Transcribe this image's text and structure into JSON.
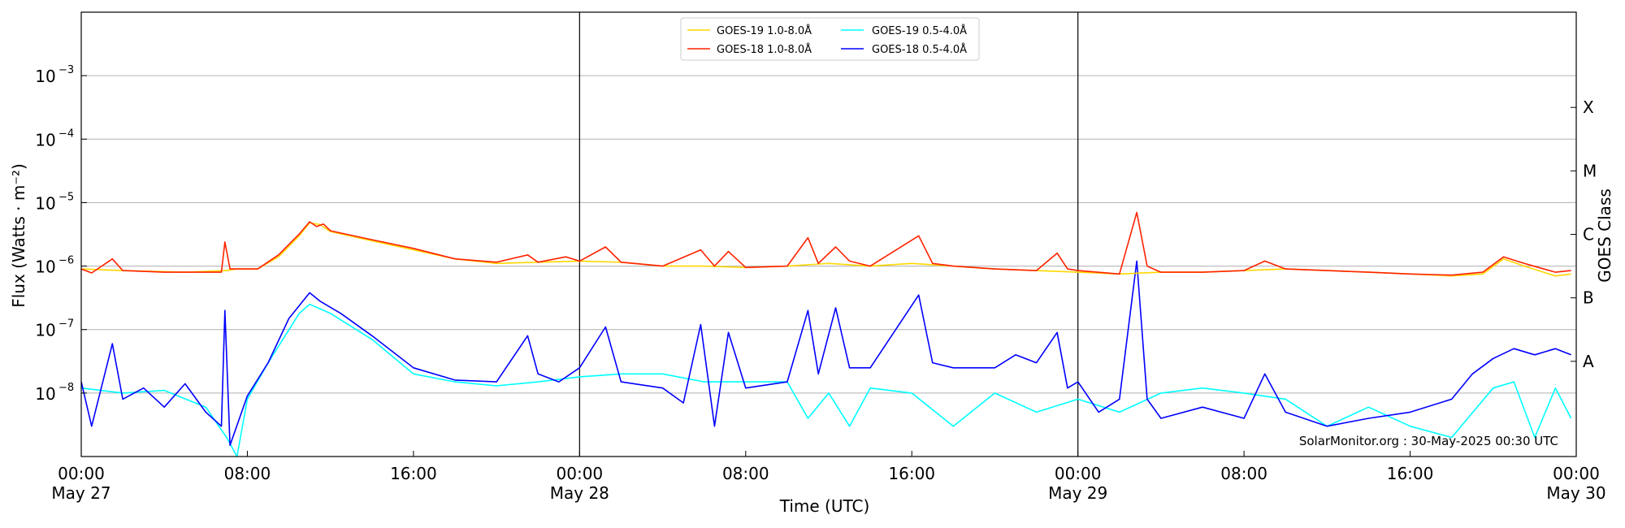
{
  "chart_data": {
    "type": "line",
    "title": "",
    "xlabel": "Time (UTC)",
    "ylabel": "Flux (Watts · m⁻²)",
    "ylabel_right": "GOES Class",
    "y_scale": "log",
    "ylim": [
      1e-09,
      0.01
    ],
    "xlim": [
      "2025-05-27 00:00",
      "2025-05-30 00:00"
    ],
    "grid": "horizontal",
    "legend_placement": "top-center",
    "credit": "SolarMonitor.org : 30-May-2025 00:30 UTC",
    "day_markers": [
      "2025-05-28 00:00",
      "2025-05-29 00:00"
    ],
    "x_ticks": [
      {
        "t": "2025-05-27 00:00",
        "line1": "00:00",
        "line2": "May 27"
      },
      {
        "t": "2025-05-27 08:00",
        "line1": "08:00",
        "line2": ""
      },
      {
        "t": "2025-05-27 16:00",
        "line1": "16:00",
        "line2": ""
      },
      {
        "t": "2025-05-28 00:00",
        "line1": "00:00",
        "line2": "May 28"
      },
      {
        "t": "2025-05-28 08:00",
        "line1": "08:00",
        "line2": ""
      },
      {
        "t": "2025-05-28 16:00",
        "line1": "16:00",
        "line2": ""
      },
      {
        "t": "2025-05-29 00:00",
        "line1": "00:00",
        "line2": "May 29"
      },
      {
        "t": "2025-05-29 08:00",
        "line1": "08:00",
        "line2": ""
      },
      {
        "t": "2025-05-29 16:00",
        "line1": "16:00",
        "line2": ""
      },
      {
        "t": "2025-05-30 00:00",
        "line1": "00:00",
        "line2": "May 30"
      }
    ],
    "y_ticks": [
      {
        "value": 1e-08,
        "label": "10",
        "exp": "−8"
      },
      {
        "value": 1e-07,
        "label": "10",
        "exp": "−7"
      },
      {
        "value": 1e-06,
        "label": "10",
        "exp": "−6"
      },
      {
        "value": 1e-05,
        "label": "10",
        "exp": "−5"
      },
      {
        "value": 0.0001,
        "label": "10",
        "exp": "−4"
      },
      {
        "value": 0.001,
        "label": "10",
        "exp": "−3"
      }
    ],
    "goes_classes": [
      {
        "label": "A",
        "value": 3.16e-08
      },
      {
        "label": "B",
        "value": 3.16e-07
      },
      {
        "label": "C",
        "value": 3.16e-06
      },
      {
        "label": "M",
        "value": 3.16e-05
      },
      {
        "label": "X",
        "value": 0.000316
      }
    ],
    "series": [
      {
        "name": "GOES-19 1.0-8.0Å",
        "color": "#ffd700",
        "points": [
          [
            "2025-05-27 00:00",
            9e-07
          ],
          [
            "2025-05-27 02:00",
            8.5e-07
          ],
          [
            "2025-05-27 05:00",
            8e-07
          ],
          [
            "2025-05-27 07:00",
            8.5e-07
          ],
          [
            "2025-05-27 07:30",
            9e-07
          ],
          [
            "2025-05-27 08:30",
            9e-07
          ],
          [
            "2025-05-27 09:30",
            1.4e-06
          ],
          [
            "2025-05-27 10:30",
            3e-06
          ],
          [
            "2025-05-27 11:00",
            4.8e-06
          ],
          [
            "2025-05-27 11:30",
            4.5e-06
          ],
          [
            "2025-05-27 12:00",
            3.5e-06
          ],
          [
            "2025-05-27 14:00",
            2.5e-06
          ],
          [
            "2025-05-27 16:00",
            1.8e-06
          ],
          [
            "2025-05-27 18:00",
            1.3e-06
          ],
          [
            "2025-05-27 20:00",
            1.1e-06
          ],
          [
            "2025-05-27 22:00",
            1.15e-06
          ],
          [
            "2025-05-28 00:00",
            1.2e-06
          ],
          [
            "2025-05-28 02:00",
            1.15e-06
          ],
          [
            "2025-05-28 04:00",
            1e-06
          ],
          [
            "2025-05-28 06:00",
            1e-06
          ],
          [
            "2025-05-28 08:00",
            9.5e-07
          ],
          [
            "2025-05-28 10:00",
            1e-06
          ],
          [
            "2025-05-28 12:00",
            1.1e-06
          ],
          [
            "2025-05-28 14:00",
            1e-06
          ],
          [
            "2025-05-28 16:00",
            1.1e-06
          ],
          [
            "2025-05-28 18:00",
            1e-06
          ],
          [
            "2025-05-28 20:00",
            9e-07
          ],
          [
            "2025-05-28 22:00",
            8.5e-07
          ],
          [
            "2025-05-29 00:00",
            8e-07
          ],
          [
            "2025-05-29 02:00",
            7.5e-07
          ],
          [
            "2025-05-29 04:00",
            8e-07
          ],
          [
            "2025-05-29 06:00",
            8e-07
          ],
          [
            "2025-05-29 08:00",
            8.5e-07
          ],
          [
            "2025-05-29 10:00",
            9e-07
          ],
          [
            "2025-05-29 12:00",
            8.5e-07
          ],
          [
            "2025-05-29 14:00",
            8e-07
          ],
          [
            "2025-05-29 16:00",
            7.5e-07
          ],
          [
            "2025-05-29 18:00",
            7e-07
          ],
          [
            "2025-05-29 19:30",
            7.5e-07
          ],
          [
            "2025-05-29 20:30",
            1.3e-06
          ],
          [
            "2025-05-29 21:30",
            1e-06
          ],
          [
            "2025-05-29 23:00",
            7e-07
          ],
          [
            "2025-05-29 23:45",
            7.5e-07
          ]
        ]
      },
      {
        "name": "GOES-18 1.0-8.0Å",
        "color": "#ff2200",
        "points": [
          [
            "2025-05-27 00:00",
            9e-07
          ],
          [
            "2025-05-27 00:30",
            7.8e-07
          ],
          [
            "2025-05-27 01:30",
            1.3e-06
          ],
          [
            "2025-05-27 02:00",
            8.5e-07
          ],
          [
            "2025-05-27 04:00",
            8e-07
          ],
          [
            "2025-05-27 06:00",
            8e-07
          ],
          [
            "2025-05-27 06:45",
            8e-07
          ],
          [
            "2025-05-27 06:55",
            2.4e-06
          ],
          [
            "2025-05-27 07:10",
            9e-07
          ],
          [
            "2025-05-27 08:30",
            9e-07
          ],
          [
            "2025-05-27 09:30",
            1.5e-06
          ],
          [
            "2025-05-27 10:30",
            3.2e-06
          ],
          [
            "2025-05-27 11:00",
            5e-06
          ],
          [
            "2025-05-27 11:20",
            4.2e-06
          ],
          [
            "2025-05-27 11:40",
            4.6e-06
          ],
          [
            "2025-05-27 12:00",
            3.6e-06
          ],
          [
            "2025-05-27 14:00",
            2.6e-06
          ],
          [
            "2025-05-27 16:00",
            1.9e-06
          ],
          [
            "2025-05-27 18:00",
            1.3e-06
          ],
          [
            "2025-05-27 20:00",
            1.15e-06
          ],
          [
            "2025-05-27 21:30",
            1.5e-06
          ],
          [
            "2025-05-27 22:00",
            1.15e-06
          ],
          [
            "2025-05-27 23:20",
            1.4e-06
          ],
          [
            "2025-05-28 00:00",
            1.2e-06
          ],
          [
            "2025-05-28 01:15",
            2e-06
          ],
          [
            "2025-05-28 02:00",
            1.15e-06
          ],
          [
            "2025-05-28 04:00",
            1e-06
          ],
          [
            "2025-05-28 05:50",
            1.8e-06
          ],
          [
            "2025-05-28 06:30",
            1e-06
          ],
          [
            "2025-05-28 07:10",
            1.7e-06
          ],
          [
            "2025-05-28 08:00",
            9.5e-07
          ],
          [
            "2025-05-28 10:00",
            1e-06
          ],
          [
            "2025-05-28 11:00",
            2.8e-06
          ],
          [
            "2025-05-28 11:30",
            1.1e-06
          ],
          [
            "2025-05-28 12:20",
            2e-06
          ],
          [
            "2025-05-28 13:00",
            1.2e-06
          ],
          [
            "2025-05-28 14:00",
            1e-06
          ],
          [
            "2025-05-28 16:20",
            3e-06
          ],
          [
            "2025-05-28 17:00",
            1.1e-06
          ],
          [
            "2025-05-28 18:00",
            1e-06
          ],
          [
            "2025-05-28 20:00",
            9e-07
          ],
          [
            "2025-05-28 22:00",
            8.5e-07
          ],
          [
            "2025-05-28 23:00",
            1.6e-06
          ],
          [
            "2025-05-28 23:30",
            9e-07
          ],
          [
            "2025-05-29 00:00",
            8.5e-07
          ],
          [
            "2025-05-29 02:00",
            7.5e-07
          ],
          [
            "2025-05-29 02:50",
            7e-06
          ],
          [
            "2025-05-29 03:20",
            1e-06
          ],
          [
            "2025-05-29 04:00",
            8e-07
          ],
          [
            "2025-05-29 06:00",
            8e-07
          ],
          [
            "2025-05-29 08:00",
            8.5e-07
          ],
          [
            "2025-05-29 09:00",
            1.2e-06
          ],
          [
            "2025-05-29 10:00",
            9e-07
          ],
          [
            "2025-05-29 12:00",
            8.5e-07
          ],
          [
            "2025-05-29 14:00",
            8e-07
          ],
          [
            "2025-05-29 16:00",
            7.5e-07
          ],
          [
            "2025-05-29 18:00",
            7.2e-07
          ],
          [
            "2025-05-29 19:30",
            8e-07
          ],
          [
            "2025-05-29 20:30",
            1.4e-06
          ],
          [
            "2025-05-29 21:30",
            1.1e-06
          ],
          [
            "2025-05-29 23:00",
            8e-07
          ],
          [
            "2025-05-29 23:45",
            8.5e-07
          ]
        ]
      },
      {
        "name": "GOES-19 0.5-4.0Å",
        "color": "#00ffff",
        "points": [
          [
            "2025-05-27 00:00",
            1.2e-08
          ],
          [
            "2025-05-27 02:00",
            1e-08
          ],
          [
            "2025-05-27 04:00",
            1.1e-08
          ],
          [
            "2025-05-27 06:00",
            6e-09
          ],
          [
            "2025-05-27 07:00",
            2e-09
          ],
          [
            "2025-05-27 07:30",
            1e-09
          ],
          [
            "2025-05-27 08:00",
            8e-09
          ],
          [
            "2025-05-27 09:00",
            3e-08
          ],
          [
            "2025-05-27 10:30",
            1.8e-07
          ],
          [
            "2025-05-27 11:00",
            2.5e-07
          ],
          [
            "2025-05-27 12:00",
            1.8e-07
          ],
          [
            "2025-05-27 14:00",
            7e-08
          ],
          [
            "2025-05-27 16:00",
            2e-08
          ],
          [
            "2025-05-27 18:00",
            1.5e-08
          ],
          [
            "2025-05-27 20:00",
            1.3e-08
          ],
          [
            "2025-05-27 22:00",
            1.5e-08
          ],
          [
            "2025-05-28 00:00",
            1.8e-08
          ],
          [
            "2025-05-28 02:00",
            2e-08
          ],
          [
            "2025-05-28 04:00",
            2e-08
          ],
          [
            "2025-05-28 06:00",
            1.5e-08
          ],
          [
            "2025-05-28 08:00",
            1.5e-08
          ],
          [
            "2025-05-28 10:00",
            1.5e-08
          ],
          [
            "2025-05-28 11:00",
            4e-09
          ],
          [
            "2025-05-28 12:00",
            1e-08
          ],
          [
            "2025-05-28 13:00",
            3e-09
          ],
          [
            "2025-05-28 14:00",
            1.2e-08
          ],
          [
            "2025-05-28 16:00",
            1e-08
          ],
          [
            "2025-05-28 18:00",
            3e-09
          ],
          [
            "2025-05-28 20:00",
            1e-08
          ],
          [
            "2025-05-28 22:00",
            5e-09
          ],
          [
            "2025-05-29 00:00",
            8e-09
          ],
          [
            "2025-05-29 02:00",
            5e-09
          ],
          [
            "2025-05-29 04:00",
            1e-08
          ],
          [
            "2025-05-29 06:00",
            1.2e-08
          ],
          [
            "2025-05-29 08:00",
            1e-08
          ],
          [
            "2025-05-29 10:00",
            8e-09
          ],
          [
            "2025-05-29 12:00",
            3e-09
          ],
          [
            "2025-05-29 14:00",
            6e-09
          ],
          [
            "2025-05-29 16:00",
            3e-09
          ],
          [
            "2025-05-29 18:00",
            2e-09
          ],
          [
            "2025-05-29 20:00",
            1.2e-08
          ],
          [
            "2025-05-29 21:00",
            1.5e-08
          ],
          [
            "2025-05-29 22:00",
            2e-09
          ],
          [
            "2025-05-29 23:00",
            1.2e-08
          ],
          [
            "2025-05-29 23:45",
            4e-09
          ]
        ]
      },
      {
        "name": "GOES-18 0.5-4.0Å",
        "color": "#0000ff",
        "points": [
          [
            "2025-05-27 00:00",
            1.5e-08
          ],
          [
            "2025-05-27 00:30",
            3e-09
          ],
          [
            "2025-05-27 01:30",
            6e-08
          ],
          [
            "2025-05-27 02:00",
            8e-09
          ],
          [
            "2025-05-27 03:00",
            1.2e-08
          ],
          [
            "2025-05-27 04:00",
            6e-09
          ],
          [
            "2025-05-27 05:00",
            1.4e-08
          ],
          [
            "2025-05-27 06:00",
            5e-09
          ],
          [
            "2025-05-27 06:45",
            3e-09
          ],
          [
            "2025-05-27 06:55",
            2e-07
          ],
          [
            "2025-05-27 07:10",
            1.5e-09
          ],
          [
            "2025-05-27 08:00",
            9e-09
          ],
          [
            "2025-05-27 09:00",
            3e-08
          ],
          [
            "2025-05-27 10:00",
            1.5e-07
          ],
          [
            "2025-05-27 11:00",
            3.8e-07
          ],
          [
            "2025-05-27 11:30",
            2.8e-07
          ],
          [
            "2025-05-27 12:30",
            1.8e-07
          ],
          [
            "2025-05-27 14:00",
            8e-08
          ],
          [
            "2025-05-27 16:00",
            2.5e-08
          ],
          [
            "2025-05-27 18:00",
            1.6e-08
          ],
          [
            "2025-05-27 20:00",
            1.5e-08
          ],
          [
            "2025-05-27 21:30",
            8e-08
          ],
          [
            "2025-05-27 22:00",
            2e-08
          ],
          [
            "2025-05-27 23:00",
            1.5e-08
          ],
          [
            "2025-05-28 00:00",
            2.5e-08
          ],
          [
            "2025-05-28 01:15",
            1.1e-07
          ],
          [
            "2025-05-28 02:00",
            1.5e-08
          ],
          [
            "2025-05-28 04:00",
            1.2e-08
          ],
          [
            "2025-05-28 05:00",
            7e-09
          ],
          [
            "2025-05-28 05:50",
            1.2e-07
          ],
          [
            "2025-05-28 06:30",
            3e-09
          ],
          [
            "2025-05-28 07:10",
            9e-08
          ],
          [
            "2025-05-28 08:00",
            1.2e-08
          ],
          [
            "2025-05-28 10:00",
            1.5e-08
          ],
          [
            "2025-05-28 11:00",
            2e-07
          ],
          [
            "2025-05-28 11:30",
            2e-08
          ],
          [
            "2025-05-28 12:20",
            2.2e-07
          ],
          [
            "2025-05-28 13:00",
            2.5e-08
          ],
          [
            "2025-05-28 14:00",
            2.5e-08
          ],
          [
            "2025-05-28 16:20",
            3.5e-07
          ],
          [
            "2025-05-28 17:00",
            3e-08
          ],
          [
            "2025-05-28 18:00",
            2.5e-08
          ],
          [
            "2025-05-28 20:00",
            2.5e-08
          ],
          [
            "2025-05-28 21:00",
            4e-08
          ],
          [
            "2025-05-28 22:00",
            3e-08
          ],
          [
            "2025-05-28 23:00",
            9e-08
          ],
          [
            "2025-05-28 23:30",
            1.2e-08
          ],
          [
            "2025-05-29 00:00",
            1.5e-08
          ],
          [
            "2025-05-29 01:00",
            5e-09
          ],
          [
            "2025-05-29 02:00",
            8e-09
          ],
          [
            "2025-05-29 02:50",
            1.2e-06
          ],
          [
            "2025-05-29 03:20",
            8e-09
          ],
          [
            "2025-05-29 04:00",
            4e-09
          ],
          [
            "2025-05-29 06:00",
            6e-09
          ],
          [
            "2025-05-29 08:00",
            4e-09
          ],
          [
            "2025-05-29 09:00",
            2e-08
          ],
          [
            "2025-05-29 10:00",
            5e-09
          ],
          [
            "2025-05-29 12:00",
            3e-09
          ],
          [
            "2025-05-29 14:00",
            4e-09
          ],
          [
            "2025-05-29 16:00",
            5e-09
          ],
          [
            "2025-05-29 18:00",
            8e-09
          ],
          [
            "2025-05-29 19:00",
            2e-08
          ],
          [
            "2025-05-29 20:00",
            3.5e-08
          ],
          [
            "2025-05-29 21:00",
            5e-08
          ],
          [
            "2025-05-29 22:00",
            4e-08
          ],
          [
            "2025-05-29 23:00",
            5e-08
          ],
          [
            "2025-05-29 23:45",
            4e-08
          ]
        ]
      }
    ]
  }
}
